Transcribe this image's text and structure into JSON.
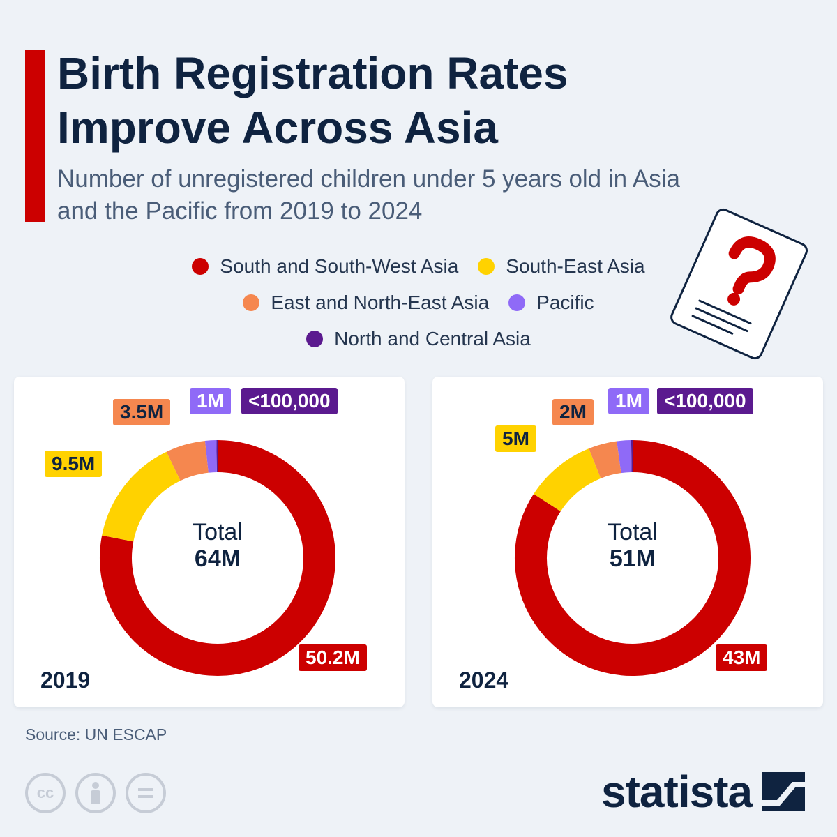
{
  "title": "Birth Registration Rates Improve Across Asia",
  "subtitle": "Number of unregistered children under 5 years old in Asia and the Pacific from 2019 to 2024",
  "legend": [
    {
      "label": "South and South-West Asia",
      "color": "#cc0000"
    },
    {
      "label": "South-East Asia",
      "color": "#ffd200"
    },
    {
      "label": "East and North-East Asia",
      "color": "#f5874f"
    },
    {
      "label": "Pacific",
      "color": "#8f6af7"
    },
    {
      "label": "North and Central Asia",
      "color": "#5b1a8f"
    }
  ],
  "chart_data": [
    {
      "type": "pie",
      "year": "2019",
      "center_label": "Total",
      "total_label": "64M",
      "slices": [
        {
          "name": "South and South-West Asia",
          "value": 50.2,
          "label": "50.2M",
          "color": "#cc0000"
        },
        {
          "name": "South-East Asia",
          "value": 9.5,
          "label": "9.5M",
          "color": "#ffd200"
        },
        {
          "name": "East and North-East Asia",
          "value": 3.5,
          "label": "3.5M",
          "color": "#f5874f"
        },
        {
          "name": "Pacific",
          "value": 1,
          "label": "1M",
          "color": "#8f6af7"
        },
        {
          "name": "North and Central Asia",
          "value": 0.1,
          "label": "<100,000",
          "color": "#5b1a8f"
        }
      ]
    },
    {
      "type": "pie",
      "year": "2024",
      "center_label": "Total",
      "total_label": "51M",
      "slices": [
        {
          "name": "South and South-West Asia",
          "value": 43,
          "label": "43M",
          "color": "#cc0000"
        },
        {
          "name": "South-East Asia",
          "value": 5,
          "label": "5M",
          "color": "#ffd200"
        },
        {
          "name": "East and North-East Asia",
          "value": 2,
          "label": "2M",
          "color": "#f5874f"
        },
        {
          "name": "Pacific",
          "value": 1,
          "label": "1M",
          "color": "#8f6af7"
        },
        {
          "name": "North and Central Asia",
          "value": 0.1,
          "label": "<100,000",
          "color": "#5b1a8f"
        }
      ]
    }
  ],
  "source": "Source: UN ESCAP",
  "brand": "statista",
  "footer_icons": [
    "creative-commons-icon",
    "attribution-icon",
    "no-derivatives-icon"
  ]
}
